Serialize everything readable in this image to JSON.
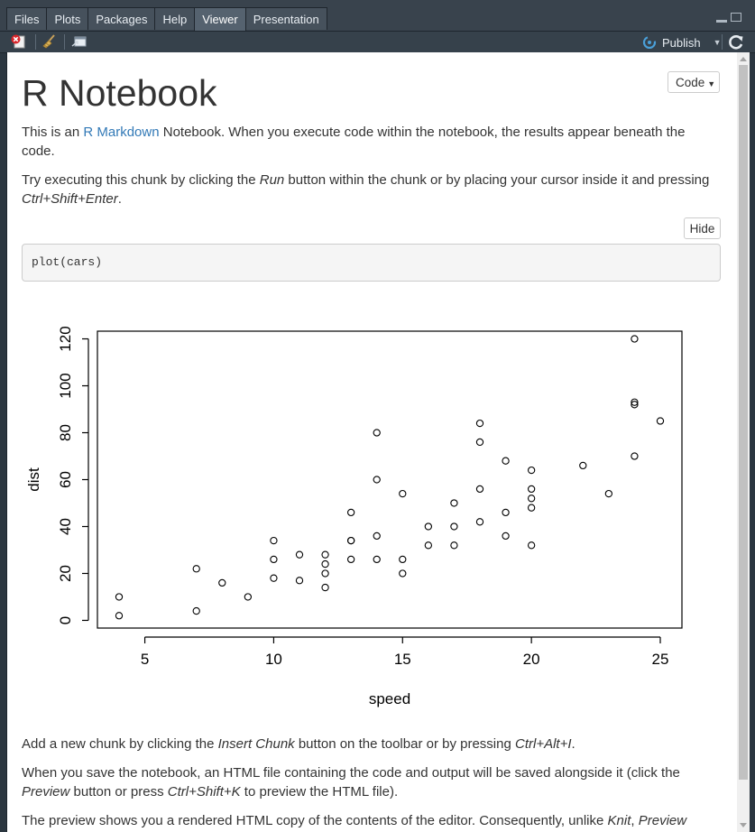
{
  "tabs": [
    {
      "label": "Files",
      "active": false
    },
    {
      "label": "Plots",
      "active": false
    },
    {
      "label": "Packages",
      "active": false
    },
    {
      "label": "Help",
      "active": false
    },
    {
      "label": "Viewer",
      "active": true
    },
    {
      "label": "Presentation",
      "active": false
    }
  ],
  "toolbar": {
    "icons": [
      "clear-viewer-icon",
      "broom-icon",
      "show-in-window-icon",
      "refresh-icon"
    ],
    "publish_label": "Publish"
  },
  "doc": {
    "title": "R Notebook",
    "code_button": "Code",
    "p1": {
      "before": "This is an ",
      "link": "R Markdown",
      "after": " Notebook. When you execute code within the notebook, the results appear beneath the code."
    },
    "p2": {
      "t1": "Try executing this chunk by clicking the ",
      "em1": "Run",
      "t2": " button within the chunk or by placing your cursor inside it and pressing ",
      "em2": "Ctrl+Shift+Enter",
      "t3": "."
    },
    "hide_button": "Hide",
    "code": "plot(cars)",
    "p3": {
      "t1": "Add a new chunk by clicking the ",
      "em1": "Insert Chunk",
      "t2": " button on the toolbar or by pressing ",
      "em2": "Ctrl+Alt+I",
      "t3": "."
    },
    "p4": {
      "t1": "When you save the notebook, an HTML file containing the code and output will be saved alongside it (click the ",
      "em1": "Preview",
      "t2": " button or press ",
      "em2": "Ctrl+Shift+K",
      "t3": " to preview the HTML file)."
    },
    "p5": {
      "t1": "The preview shows you a rendered HTML copy of the contents of the editor. Consequently, unlike ",
      "em1": "Knit",
      "t2": ", ",
      "em2": "Preview"
    }
  },
  "colors": {
    "link": "#337ab7",
    "text": "#333333",
    "publish_icon": "#4a9fd8"
  },
  "chart_data": {
    "type": "scatter",
    "xlabel": "speed",
    "ylabel": "dist",
    "xlim": [
      3.16,
      25.84
    ],
    "ylim": [
      -3.28,
      123.28
    ],
    "xticks": [
      5,
      10,
      15,
      20,
      25
    ],
    "yticks": [
      0,
      20,
      40,
      60,
      80,
      100,
      120
    ],
    "points": [
      [
        4,
        2
      ],
      [
        4,
        10
      ],
      [
        7,
        4
      ],
      [
        7,
        22
      ],
      [
        8,
        16
      ],
      [
        9,
        10
      ],
      [
        10,
        18
      ],
      [
        10,
        26
      ],
      [
        10,
        34
      ],
      [
        11,
        17
      ],
      [
        11,
        28
      ],
      [
        12,
        14
      ],
      [
        12,
        20
      ],
      [
        12,
        24
      ],
      [
        12,
        28
      ],
      [
        13,
        26
      ],
      [
        13,
        34
      ],
      [
        13,
        34
      ],
      [
        13,
        46
      ],
      [
        14,
        26
      ],
      [
        14,
        36
      ],
      [
        14,
        60
      ],
      [
        14,
        80
      ],
      [
        15,
        20
      ],
      [
        15,
        26
      ],
      [
        15,
        54
      ],
      [
        16,
        32
      ],
      [
        16,
        40
      ],
      [
        17,
        32
      ],
      [
        17,
        40
      ],
      [
        17,
        50
      ],
      [
        18,
        42
      ],
      [
        18,
        56
      ],
      [
        18,
        76
      ],
      [
        18,
        84
      ],
      [
        19,
        36
      ],
      [
        19,
        46
      ],
      [
        19,
        68
      ],
      [
        20,
        32
      ],
      [
        20,
        48
      ],
      [
        20,
        52
      ],
      [
        20,
        56
      ],
      [
        20,
        64
      ],
      [
        22,
        66
      ],
      [
        23,
        54
      ],
      [
        24,
        70
      ],
      [
        24,
        92
      ],
      [
        24,
        93
      ],
      [
        24,
        120
      ],
      [
        25,
        85
      ]
    ]
  }
}
